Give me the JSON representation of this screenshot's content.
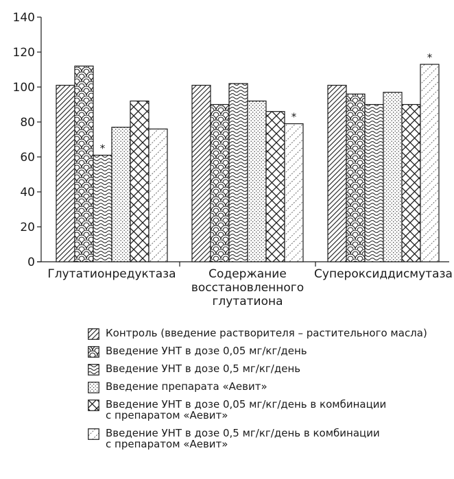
{
  "chart_data": {
    "type": "bar",
    "categories": [
      "Глутатионредуктаза",
      "Содержание\nвосстановленного\nглутатиона",
      "Супероксиддисмутаза"
    ],
    "ylim": [
      0,
      140
    ],
    "yticks": [
      0,
      20,
      40,
      60,
      80,
      100,
      120,
      140
    ],
    "grid": false,
    "legend_position": "bottom",
    "series": [
      {
        "name": "Контроль (введение растворителя – растительного масла)",
        "pattern": "hatch",
        "values": [
          101,
          101,
          101
        ],
        "significant": [
          false,
          false,
          false
        ]
      },
      {
        "name": "Введение УНТ в дозе 0,05 мг/кг/день",
        "pattern": "scales",
        "values": [
          112,
          90,
          96
        ],
        "significant": [
          false,
          false,
          false
        ]
      },
      {
        "name": "Введение УНТ в дозе 0,5 мг/кг/день",
        "pattern": "waves",
        "values": [
          61,
          102,
          90
        ],
        "significant": [
          true,
          false,
          false
        ]
      },
      {
        "name": "Введение препарата «Аевит»",
        "pattern": "dots",
        "values": [
          77,
          92,
          97
        ],
        "significant": [
          false,
          false,
          false
        ]
      },
      {
        "name": "Введение УНТ в дозе 0,05 мг/кг/день в комбинации\nс препаратом «Аевит»",
        "pattern": "crosshatch",
        "values": [
          92,
          86,
          90
        ],
        "significant": [
          false,
          false,
          false
        ]
      },
      {
        "name": "Введение УНТ в дозе 0,5 мг/кг/день в комбинации\nс препаратом «Аевит»",
        "pattern": "dashes",
        "values": [
          76,
          79,
          113
        ],
        "significant": [
          false,
          true,
          true
        ]
      }
    ],
    "significance_marker": "*"
  }
}
